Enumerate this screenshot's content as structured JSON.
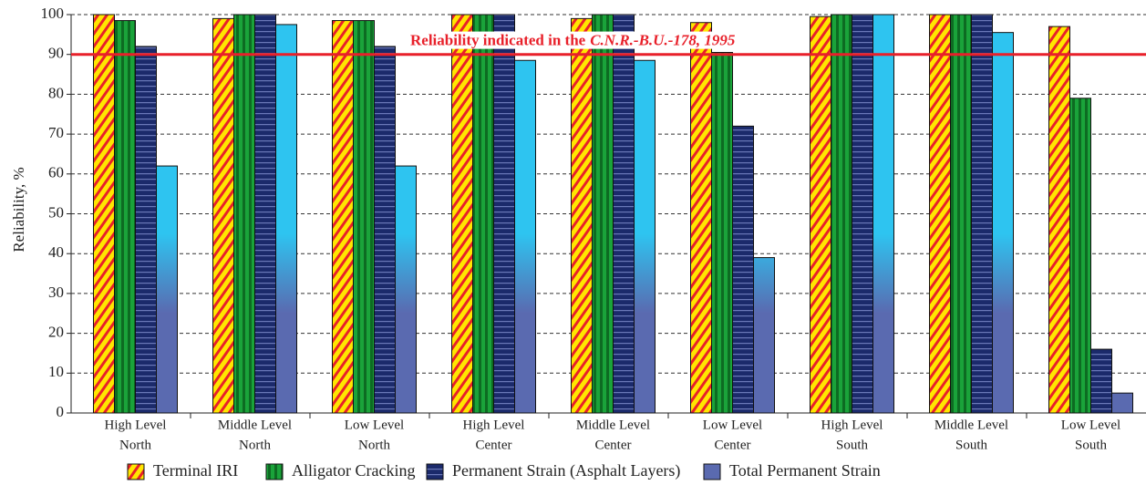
{
  "chart_data": {
    "type": "bar",
    "y_label": "Reliability, %",
    "categories": [
      [
        "High Level",
        "North"
      ],
      [
        "Middle Level",
        "North"
      ],
      [
        "Low Level",
        "North"
      ],
      [
        "High Level",
        "Center"
      ],
      [
        "Middle Level",
        "Center"
      ],
      [
        "Low Level",
        "Center"
      ],
      [
        "High Level",
        "South"
      ],
      [
        "Middle Level",
        "South"
      ],
      [
        "Low Level",
        "South"
      ]
    ],
    "series": [
      {
        "name": "Terminal IRI",
        "color": "#ffe600",
        "values": [
          100,
          99,
          98.5,
          100,
          99,
          98,
          99.5,
          100,
          97
        ]
      },
      {
        "name": "Alligator Cracking",
        "color": "#1aa33a",
        "values": [
          98.5,
          100,
          98.5,
          100,
          100,
          90.5,
          100,
          100,
          79
        ]
      },
      {
        "name": "Permanent Strain (Asphalt Layers)",
        "color": "#1b2a6b",
        "values": [
          92,
          100,
          92,
          100,
          100,
          72,
          100,
          100,
          16
        ]
      },
      {
        "name": "Total Permanent Strain",
        "color": "#2ec4f0",
        "values": [
          62,
          97.5,
          62,
          88.5,
          88.5,
          39,
          100,
          95.5,
          5
        ]
      }
    ],
    "ylim": [
      0,
      100
    ],
    "yticks": [
      0,
      10,
      20,
      30,
      40,
      50,
      60,
      70,
      80,
      90,
      100
    ],
    "grid": true,
    "legend": "bottom",
    "reference_line": {
      "value": 90,
      "color": "#e8202a",
      "label": [
        "Reliability indicated in the",
        "C.N.R.-B.U.-178, 1995"
      ]
    }
  }
}
